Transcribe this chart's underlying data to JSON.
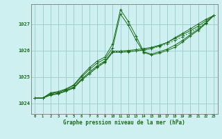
{
  "bg_color": "#cef0f0",
  "grid_color": "#a0d0d0",
  "line_color": "#1a6b1a",
  "xlabel": "Graphe pression niveau de la mer (hPa)",
  "ylabel_ticks": [
    1024,
    1025,
    1026,
    1027
  ],
  "xlim": [
    -0.5,
    23.5
  ],
  "ylim": [
    1023.6,
    1027.75
  ],
  "hours": [
    0,
    1,
    2,
    3,
    4,
    5,
    6,
    7,
    8,
    9,
    10,
    11,
    12,
    13,
    14,
    15,
    16,
    17,
    18,
    19,
    20,
    21,
    22,
    23
  ],
  "line_spike": [
    1024.2,
    1024.2,
    1024.4,
    1024.45,
    1024.55,
    1024.7,
    1025.05,
    1025.35,
    1025.6,
    1025.75,
    1026.25,
    1027.55,
    1027.1,
    1026.55,
    1025.95,
    1025.87,
    1025.95,
    1026.05,
    1026.2,
    1026.38,
    1026.6,
    1026.8,
    1027.05,
    1027.32
  ],
  "line_spike2": [
    1024.2,
    1024.2,
    1024.38,
    1024.42,
    1024.52,
    1024.68,
    1025.0,
    1025.28,
    1025.52,
    1025.68,
    1026.1,
    1027.38,
    1026.95,
    1026.4,
    1025.92,
    1025.83,
    1025.9,
    1026.0,
    1026.12,
    1026.32,
    1026.55,
    1026.76,
    1027.02,
    1027.32
  ],
  "line_dotted": [
    1024.2,
    1024.2,
    1024.35,
    1024.4,
    1024.5,
    1024.6,
    1024.88,
    1025.12,
    1025.38,
    1025.58,
    1025.95,
    1025.95,
    1025.97,
    1025.99,
    1026.02,
    1026.07,
    1026.15,
    1026.25,
    1026.38,
    1026.52,
    1026.68,
    1026.85,
    1027.05,
    1027.32
  ],
  "line_straight1": [
    1024.2,
    1024.2,
    1024.33,
    1024.38,
    1024.48,
    1024.62,
    1024.92,
    1025.18,
    1025.42,
    1025.6,
    1025.98,
    1025.98,
    1026.0,
    1026.03,
    1026.07,
    1026.12,
    1026.2,
    1026.3,
    1026.45,
    1026.6,
    1026.75,
    1026.92,
    1027.12,
    1027.32
  ],
  "line_straight2": [
    1024.2,
    1024.2,
    1024.31,
    1024.36,
    1024.46,
    1024.58,
    1024.88,
    1025.12,
    1025.36,
    1025.55,
    1025.93,
    1025.93,
    1025.95,
    1025.98,
    1026.02,
    1026.08,
    1026.18,
    1026.3,
    1026.48,
    1026.65,
    1026.82,
    1027.0,
    1027.18,
    1027.32
  ]
}
